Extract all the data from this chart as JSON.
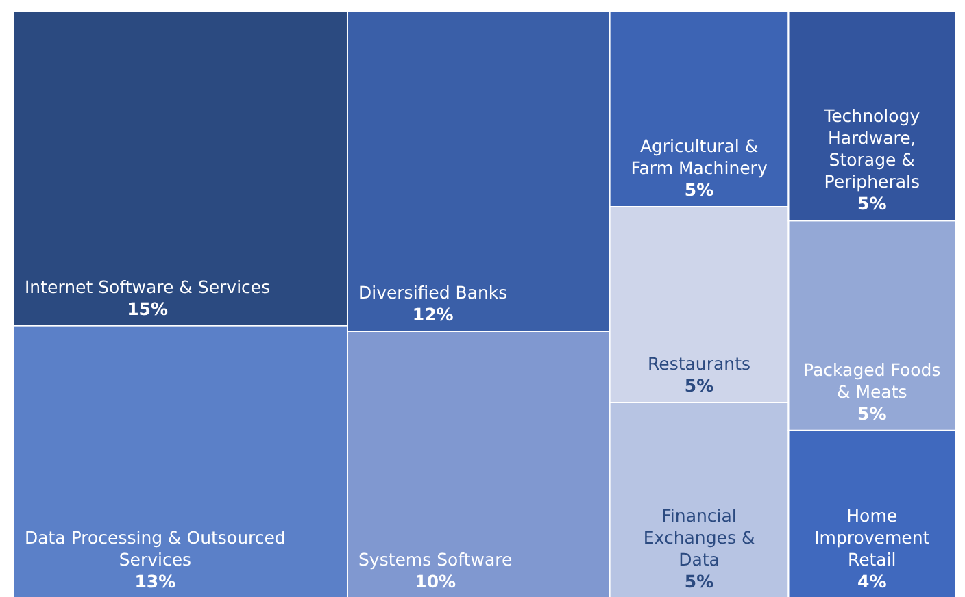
{
  "chart_data": {
    "type": "other",
    "categories": [
      "Internet Software & Services",
      "Data Processing & Outsourced Services",
      "Diversified Banks",
      "Systems Software",
      "Agricultural & Farm Machinery",
      "Restaurants",
      "Financial Exchanges & Data",
      "Technology Hardware, Storage & Peripherals",
      "Packaged Foods & Meats",
      "Home Improvement Retail"
    ],
    "values": [
      15,
      13,
      12,
      10,
      5,
      5,
      5,
      5,
      5,
      4
    ],
    "value_labels": [
      "15%",
      "13%",
      "12%",
      "10%",
      "5%",
      "5%",
      "5%",
      "5%",
      "5%",
      "4%"
    ],
    "colors": [
      "#2b4a80",
      "#5b80c8",
      "#3a5fa8",
      "#8098d0",
      "#3d64b4",
      "#ced5ea",
      "#b7c4e3",
      "#33559e",
      "#94a8d6",
      "#4069be"
    ]
  }
}
